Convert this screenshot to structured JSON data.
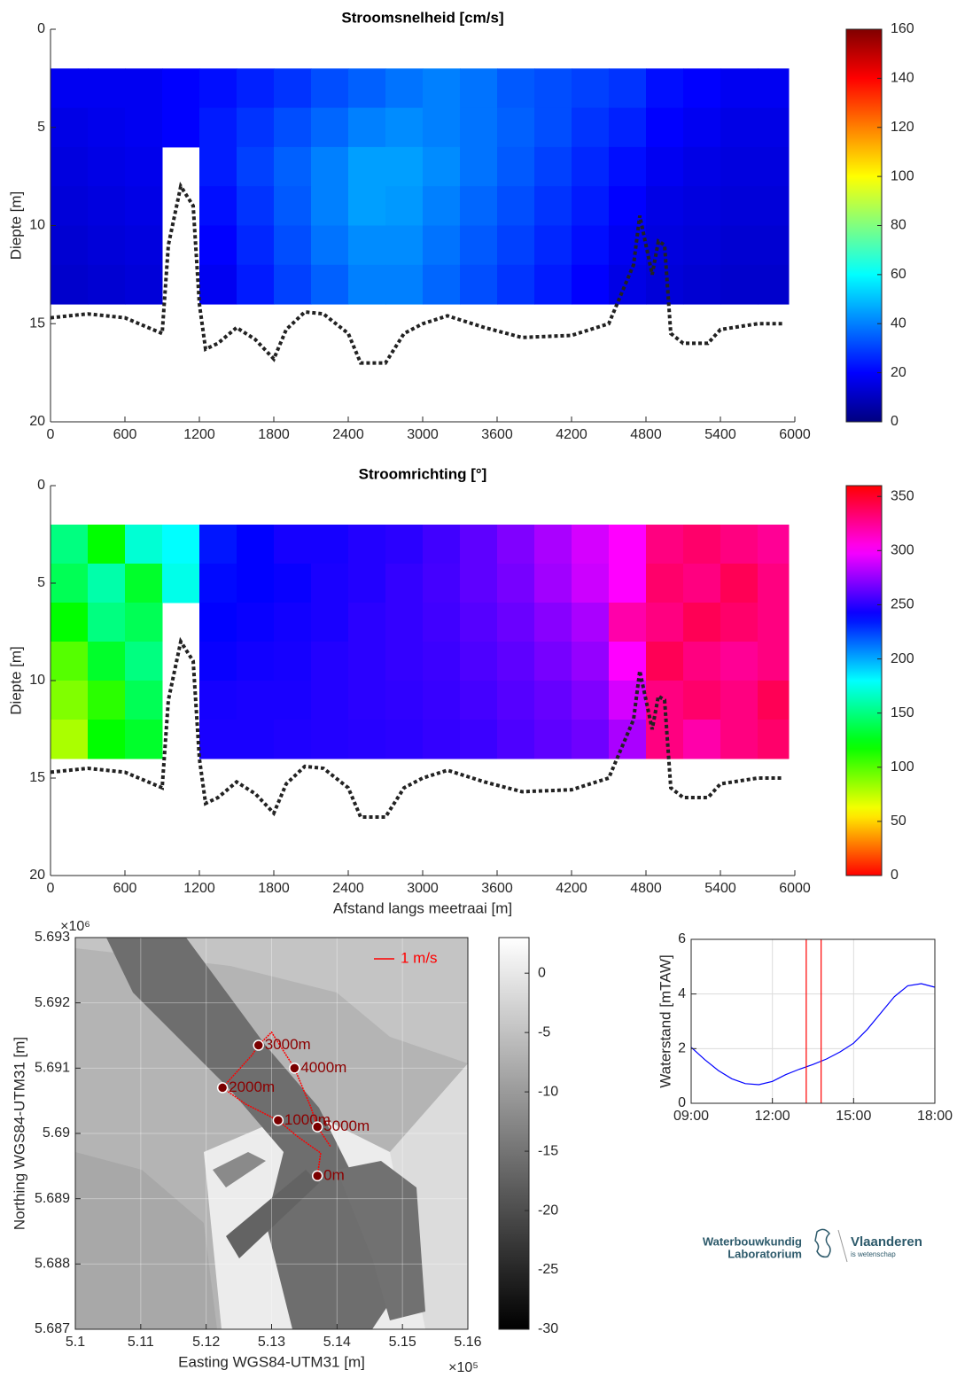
{
  "chart_data": [
    {
      "type": "heatmap",
      "title": "Stroomsnelheid [cm/s]",
      "ylabel": "Diepte [m]",
      "xlim": [
        0,
        6000
      ],
      "xticks": [
        0,
        600,
        1200,
        1800,
        2400,
        3000,
        3600,
        4200,
        4800,
        5400,
        6000
      ],
      "ylim": [
        0,
        20
      ],
      "yticks": [
        0,
        5,
        10,
        15,
        20
      ],
      "y_reversed": true,
      "colormap": "jet",
      "clim": [
        0,
        160
      ],
      "cticks": [
        0,
        20,
        40,
        60,
        80,
        100,
        120,
        140,
        160
      ],
      "x_edges": [
        0,
        300,
        600,
        900,
        1200,
        1500,
        1800,
        2100,
        2400,
        2700,
        3000,
        3300,
        3600,
        3900,
        4200,
        4500,
        4800,
        5100,
        5400,
        5700,
        5950
      ],
      "y_edges": [
        2,
        4,
        6,
        8,
        10,
        12,
        14
      ],
      "values": [
        [
          18,
          18,
          18,
          20,
          22,
          25,
          28,
          32,
          35,
          38,
          40,
          38,
          34,
          32,
          30,
          28,
          22,
          20,
          18,
          18
        ],
        [
          16,
          17,
          18,
          20,
          24,
          28,
          32,
          36,
          40,
          42,
          40,
          38,
          35,
          32,
          28,
          25,
          20,
          18,
          16,
          16
        ],
        [
          15,
          16,
          17,
          null,
          24,
          30,
          35,
          40,
          45,
          45,
          42,
          38,
          34,
          30,
          26,
          22,
          18,
          16,
          15,
          15
        ],
        [
          14,
          15,
          16,
          null,
          22,
          28,
          34,
          40,
          45,
          44,
          40,
          36,
          32,
          28,
          24,
          20,
          16,
          15,
          14,
          14
        ],
        [
          13,
          14,
          15,
          null,
          20,
          26,
          32,
          38,
          42,
          42,
          38,
          34,
          30,
          26,
          22,
          18,
          15,
          14,
          13,
          13
        ],
        [
          12,
          13,
          14,
          null,
          18,
          24,
          30,
          35,
          40,
          40,
          36,
          32,
          28,
          24,
          20,
          16,
          14,
          13,
          12,
          12
        ]
      ],
      "bed": {
        "color": "#222222",
        "x": [
          0,
          300,
          600,
          900,
          950,
          1050,
          1150,
          1200,
          1250,
          1350,
          1500,
          1650,
          1800,
          1900,
          2050,
          2200,
          2400,
          2500,
          2700,
          2850,
          3000,
          3200,
          3500,
          3800,
          4200,
          4500,
          4700,
          4750,
          4850,
          4900,
          4950,
          5000,
          5100,
          5300,
          5400,
          5700,
          5900
        ],
        "y": [
          14.7,
          14.5,
          14.7,
          15.5,
          11,
          8,
          9,
          14,
          16.3,
          16,
          15.2,
          15.8,
          16.8,
          15.3,
          14.4,
          14.5,
          15.5,
          17,
          17,
          15.5,
          15,
          14.6,
          15.2,
          15.7,
          15.6,
          15,
          12,
          9.5,
          12.5,
          10.8,
          11,
          15.5,
          16,
          16,
          15.3,
          15,
          15
        ]
      }
    },
    {
      "type": "heatmap",
      "title": "Stroomrichting [°]",
      "ylabel": "Diepte [m]",
      "xlabel": "Afstand langs meetraai [m]",
      "xlim": [
        0,
        6000
      ],
      "xticks": [
        0,
        600,
        1200,
        1800,
        2400,
        3000,
        3600,
        4200,
        4800,
        5400,
        6000
      ],
      "ylim": [
        0,
        20
      ],
      "yticks": [
        0,
        5,
        10,
        15,
        20
      ],
      "y_reversed": true,
      "colormap": "hsv",
      "clim": [
        0,
        360
      ],
      "cticks": [
        0,
        50,
        100,
        150,
        200,
        250,
        300,
        350
      ],
      "x_edges": [
        0,
        300,
        600,
        900,
        1200,
        1500,
        1800,
        2100,
        2400,
        2700,
        3000,
        3300,
        3600,
        3900,
        4200,
        4500,
        4800,
        5100,
        5400,
        5700,
        5950
      ],
      "y_edges": [
        2,
        4,
        6,
        8,
        10,
        12,
        14
      ],
      "values": [
        [
          150,
          120,
          170,
          180,
          235,
          240,
          245,
          245,
          248,
          250,
          255,
          262,
          270,
          280,
          290,
          300,
          330,
          335,
          330,
          325
        ],
        [
          140,
          160,
          130,
          175,
          238,
          240,
          242,
          246,
          248,
          252,
          256,
          262,
          268,
          278,
          288,
          300,
          335,
          330,
          340,
          330
        ],
        [
          120,
          150,
          140,
          null,
          240,
          242,
          244,
          246,
          250,
          252,
          255,
          260,
          265,
          272,
          280,
          320,
          330,
          340,
          335,
          330
        ],
        [
          100,
          130,
          150,
          null,
          242,
          244,
          245,
          248,
          250,
          252,
          254,
          258,
          262,
          268,
          275,
          300,
          340,
          330,
          325,
          330
        ],
        [
          90,
          110,
          140,
          null,
          245,
          246,
          246,
          248,
          250,
          251,
          253,
          256,
          260,
          264,
          270,
          290,
          330,
          335,
          330,
          340
        ],
        [
          80,
          120,
          130,
          null,
          246,
          246,
          247,
          248,
          249,
          250,
          252,
          254,
          258,
          262,
          266,
          280,
          330,
          320,
          330,
          335
        ]
      ],
      "bed": {
        "color": "#222222",
        "x": [
          0,
          300,
          600,
          900,
          950,
          1050,
          1150,
          1200,
          1250,
          1350,
          1500,
          1650,
          1800,
          1900,
          2050,
          2200,
          2400,
          2500,
          2700,
          2850,
          3000,
          3200,
          3500,
          3800,
          4200,
          4500,
          4700,
          4750,
          4850,
          4900,
          4950,
          5000,
          5100,
          5300,
          5400,
          5700,
          5900
        ],
        "y": [
          14.7,
          14.5,
          14.7,
          15.5,
          11,
          8,
          9,
          14,
          16.3,
          16,
          15.2,
          15.8,
          16.8,
          15.3,
          14.4,
          14.5,
          15.5,
          17,
          17,
          15.5,
          15,
          14.6,
          15.2,
          15.7,
          15.6,
          15,
          12,
          9.5,
          12.5,
          10.8,
          11,
          15.5,
          16,
          16,
          15.3,
          15,
          15
        ]
      }
    },
    {
      "type": "map",
      "xlabel": "Easting WGS84-UTM31 [m]",
      "ylabel": "Northing WGS84-UTM31 [m]",
      "x_multiplier": "×10⁵",
      "y_multiplier": "×10⁶",
      "grid": true,
      "xlim": [
        510000,
        516000
      ],
      "xticks": [
        {
          "value": 510000,
          "label": "5.1"
        },
        {
          "value": 511000,
          "label": "5.11"
        },
        {
          "value": 512000,
          "label": "5.12"
        },
        {
          "value": 513000,
          "label": "5.13"
        },
        {
          "value": 514000,
          "label": "5.14"
        },
        {
          "value": 515000,
          "label": "5.15"
        },
        {
          "value": 516000,
          "label": "5.16"
        }
      ],
      "ylim": [
        5687000,
        5693000
      ],
      "yticks": [
        {
          "value": 5687000,
          "label": "5.687"
        },
        {
          "value": 5688000,
          "label": "5.688"
        },
        {
          "value": 5689000,
          "label": "5.689"
        },
        {
          "value": 5690000,
          "label": "5.69"
        },
        {
          "value": 5691000,
          "label": "5.691"
        },
        {
          "value": 5692000,
          "label": "5.692"
        },
        {
          "value": 5693000,
          "label": "5.693"
        }
      ],
      "colormap": "gray",
      "clim": [
        -30,
        3
      ],
      "cticks": [
        0,
        -5,
        -10,
        -15,
        -20,
        -25,
        -30
      ],
      "annotation": "1 m/s",
      "track_color": "#ff0000",
      "track": {
        "x": [
          513700,
          513750,
          513400,
          513100,
          512600,
          512250,
          512700,
          512800,
          513000,
          513350,
          513600,
          513700,
          513900
        ],
        "y": [
          5689350,
          5689700,
          5689950,
          5690200,
          5690450,
          5690700,
          5691200,
          5691350,
          5691550,
          5691000,
          5690400,
          5690100,
          5689800
        ]
      },
      "points": {
        "labels": [
          "0m",
          "1000m",
          "2000m",
          "3000m",
          "4000m",
          "5000m"
        ],
        "x": [
          513700,
          513100,
          512250,
          512800,
          513350,
          513700
        ],
        "y": [
          5689350,
          5690200,
          5690700,
          5691350,
          5691000,
          5690100
        ]
      }
    },
    {
      "type": "line",
      "ylabel": "Waterstand [mTAW]",
      "grid": true,
      "xlim": [
        9,
        18
      ],
      "xticks": [
        {
          "value": 9,
          "label": "09:00"
        },
        {
          "value": 12,
          "label": "12:00"
        },
        {
          "value": 15,
          "label": "15:00"
        },
        {
          "value": 18,
          "label": "18:00"
        }
      ],
      "ylim": [
        0,
        6
      ],
      "yticks": [
        0,
        2,
        4,
        6
      ],
      "x": [
        9,
        9.5,
        10,
        10.5,
        11,
        11.5,
        12,
        12.5,
        13,
        13.5,
        14,
        14.5,
        15,
        15.5,
        16,
        16.5,
        17,
        17.5,
        18
      ],
      "series": [
        {
          "color": "#0000ff",
          "values": [
            2.05,
            1.6,
            1.2,
            0.9,
            0.72,
            0.68,
            0.8,
            1.05,
            1.25,
            1.42,
            1.62,
            1.88,
            2.2,
            2.7,
            3.3,
            3.9,
            4.3,
            4.38,
            4.25
          ]
        }
      ],
      "vlines": [
        13.25,
        13.8
      ],
      "vline_color": "#ff0000"
    }
  ],
  "logo": {
    "line1": "Waterbouwkundig",
    "line2": "Laboratorium",
    "brand": "Vlaanderen",
    "tagline": "is wetenschap"
  }
}
